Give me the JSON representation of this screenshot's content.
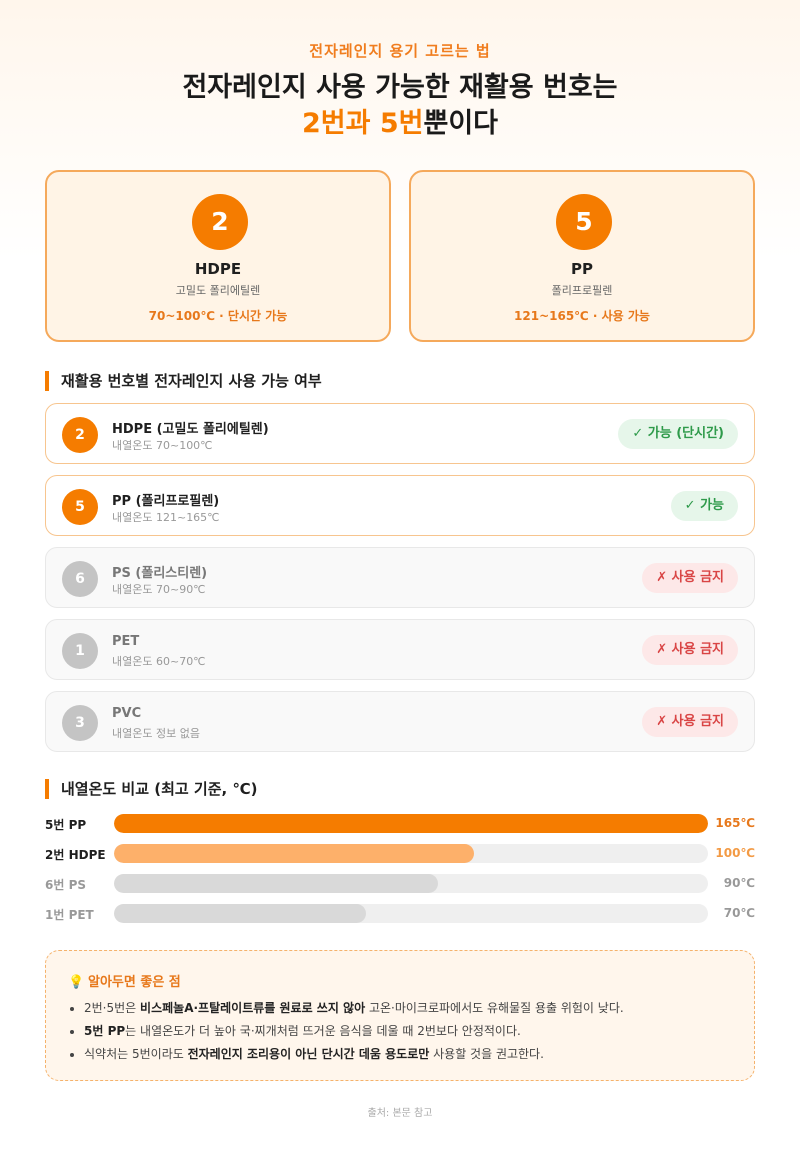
{
  "header": {
    "kicker": "전자레인지 용기 고르는 법",
    "title_line1": "전자레인지 사용 가능한 재활용 번호는",
    "title_hl": "2번과 5번",
    "title_tail": "뿐이다"
  },
  "cards": [
    {
      "num": "2",
      "code": "HDPE",
      "full": "고밀도 폴리에틸렌",
      "note": "70~100℃ · 단시간 가능"
    },
    {
      "num": "5",
      "code": "PP",
      "full": "폴리프로필렌",
      "note": "121~165℃ · 사용 가능"
    }
  ],
  "list_section": {
    "title": "재활용 번호별 전자레인지 사용 가능 여부",
    "rows": [
      {
        "num": "2",
        "name": "HDPE (고밀도 폴리에틸렌)",
        "temp": "내열온도 70~100℃",
        "badge": "✓ 가능 (단시간)",
        "ok": true
      },
      {
        "num": "5",
        "name": "PP (폴리프로필렌)",
        "temp": "내열온도 121~165℃",
        "badge": "✓ 가능",
        "ok": true
      },
      {
        "num": "6",
        "name": "PS (폴리스티렌)",
        "temp": "내열온도 70~90℃",
        "badge": "✗ 사용 금지",
        "ok": false
      },
      {
        "num": "1",
        "name": "PET",
        "temp": "내열온도 60~70℃",
        "badge": "✗ 사용 금지",
        "ok": false
      },
      {
        "num": "3",
        "name": "PVC",
        "temp": "내열온도 정보 없음",
        "badge": "✗ 사용 금지",
        "ok": false
      }
    ]
  },
  "chart_data": {
    "type": "bar",
    "title": "내열온도 비교 (최고 기준, ℃)",
    "categories": [
      "5번 PP",
      "2번 HDPE",
      "6번 PS",
      "1번 PET"
    ],
    "values": [
      165,
      100,
      90,
      70
    ],
    "value_labels": [
      "165℃",
      "100℃",
      "90℃",
      "70℃"
    ],
    "xlim": [
      0,
      165
    ],
    "colors": [
      "#f57c00",
      "#fdb06a",
      "#d9d9d9",
      "#d9d9d9"
    ],
    "label_colors": [
      "#e7781b",
      "#f39a44",
      "#999999",
      "#999999"
    ]
  },
  "tips": {
    "title": "알아두면 좋은 점",
    "items": [
      {
        "pre": "2번·5번은 ",
        "bold": "비스페놀A·프탈레이트류를 원료로 쓰지 않아",
        "post": " 고온·마이크로파에서도 유해물질 용출 위험이 낮다."
      },
      {
        "pre": "",
        "bold": "5번 PP",
        "post": "는 내열온도가 더 높아 국·찌개처럼 뜨거운 음식을 데울 때 2번보다 안정적이다."
      },
      {
        "pre": "식약처는 5번이라도 ",
        "bold": "전자레인지 조리용이 아닌 단시간 데움 용도로만",
        "post": " 사용할 것을 권고한다."
      }
    ]
  },
  "source": "출처: 본문 참고"
}
